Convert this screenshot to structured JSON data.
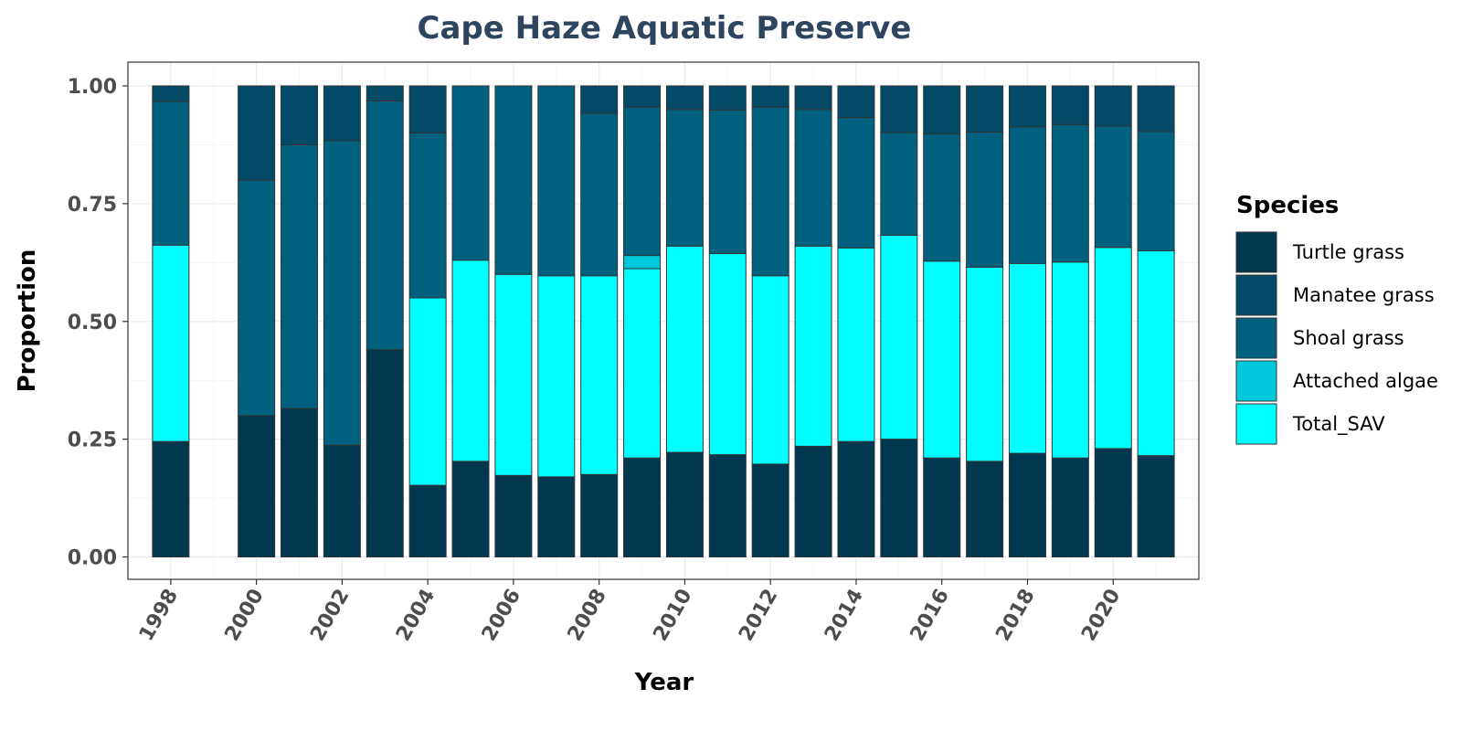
{
  "chart_data": {
    "type": "bar",
    "stacked": true,
    "title": "Cape Haze Aquatic Preserve",
    "xlabel": "Year",
    "ylabel": "Proportion",
    "ylim": [
      0,
      1
    ],
    "y_ticks": [
      "0.00",
      "0.25",
      "0.50",
      "0.75",
      "1.00"
    ],
    "y_tick_values": [
      0,
      0.25,
      0.5,
      0.75,
      1.0
    ],
    "x_ticks": [
      "1998",
      "2000",
      "2002",
      "2004",
      "2006",
      "2008",
      "2010",
      "2012",
      "2014",
      "2016",
      "2018",
      "2020"
    ],
    "x_range": [
      1997,
      2022
    ],
    "grid": true,
    "legend_position": "right",
    "legend_title": "Species",
    "categories": [
      1998,
      2000,
      2001,
      2002,
      2003,
      2004,
      2005,
      2006,
      2007,
      2008,
      2009,
      2010,
      2011,
      2012,
      2013,
      2014,
      2015,
      2016,
      2017,
      2018,
      2019,
      2020,
      2021
    ],
    "stack_order_bottom_to_top": [
      "Turtle grass",
      "Total_SAV",
      "Attached algae",
      "Shoal grass",
      "Manatee grass"
    ],
    "legend_order": [
      "Turtle grass",
      "Manatee grass",
      "Shoal grass",
      "Attached algae",
      "Total_SAV"
    ],
    "series": [
      {
        "name": "Turtle grass",
        "color": "#023750",
        "values": [
          0.245,
          0.3,
          0.315,
          0.237,
          0.44,
          0.152,
          0.203,
          0.173,
          0.17,
          0.175,
          0.21,
          0.222,
          0.217,
          0.197,
          0.235,
          0.245,
          0.25,
          0.21,
          0.203,
          0.22,
          0.21,
          0.23,
          0.215
        ]
      },
      {
        "name": "Total_SAV",
        "color": "#00ffff",
        "values": [
          0.417,
          0,
          0,
          0,
          0,
          0.398,
          0.427,
          0.427,
          0.427,
          0.422,
          0.402,
          0.438,
          0.427,
          0.4,
          0.425,
          0.411,
          0.433,
          0.418,
          0.412,
          0.403,
          0.416,
          0.427,
          0.435
        ]
      },
      {
        "name": "Attached algae",
        "color": "#00c8dc",
        "values": [
          0,
          0,
          0,
          0,
          0,
          0,
          0,
          0,
          0,
          0,
          0.028,
          0,
          0,
          0,
          0,
          0,
          0,
          0,
          0,
          0,
          0,
          0,
          0
        ]
      },
      {
        "name": "Shoal grass",
        "color": "#00617f",
        "values": [
          0.305,
          0.5,
          0.56,
          0.647,
          0.528,
          0.35,
          0.37,
          0.4,
          0.403,
          0.345,
          0.315,
          0.29,
          0.305,
          0.358,
          0.29,
          0.277,
          0.218,
          0.27,
          0.287,
          0.29,
          0.292,
          0.258,
          0.253
        ]
      },
      {
        "name": "Manatee grass",
        "color": "#024a66",
        "values": [
          0.033,
          0.2,
          0.125,
          0.116,
          0.032,
          0.1,
          0,
          0,
          0,
          0.058,
          0.045,
          0.05,
          0.051,
          0.045,
          0.05,
          0.067,
          0.099,
          0.102,
          0.098,
          0.087,
          0.082,
          0.085,
          0.097
        ]
      }
    ]
  }
}
